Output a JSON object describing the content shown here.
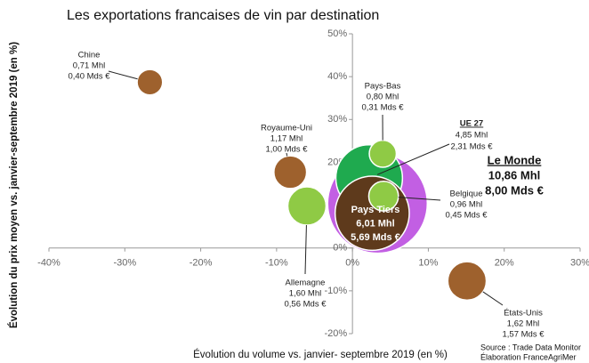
{
  "chart_data": {
    "type": "scatter",
    "title": "Les exportations francaises de vin par destination",
    "x_label": "Évolution du volume vs. janvier- septembre 2019 (en %)",
    "y_label": "Évolution du prix moyen vs. janvier-septembre 2019 (en %)",
    "source": [
      "Source : Trade Data Monitor",
      "Élaboration FranceAgriMer"
    ],
    "xlim": [
      -40,
      30
    ],
    "ylim": [
      -20,
      50
    ],
    "xticks": [
      {
        "value": -40,
        "label": "-40%"
      },
      {
        "value": -30,
        "label": "-30%"
      },
      {
        "value": -20,
        "label": "-20%"
      },
      {
        "value": -10,
        "label": "-10%"
      },
      {
        "value": 0,
        "label": "0%"
      },
      {
        "value": 10,
        "label": "10%"
      },
      {
        "value": 20,
        "label": "20%"
      },
      {
        "value": 30,
        "label": "30%"
      }
    ],
    "yticks": [
      {
        "value": -20,
        "label": "-20%"
      },
      {
        "value": -10,
        "label": "-10%"
      },
      {
        "value": 0,
        "label": "0%"
      },
      {
        "value": 10,
        "label": "10%"
      },
      {
        "value": 20,
        "label": "20%"
      },
      {
        "value": 30,
        "label": "30%"
      },
      {
        "value": 40,
        "label": "40%"
      },
      {
        "value": 50,
        "label": "50%"
      }
    ],
    "points": [
      {
        "name": "Le Monde",
        "x": 3.3,
        "y": 10.4,
        "size": 10.86,
        "size_label": "10,86 Mhl",
        "value_label": "8,00 Mds €",
        "color": "#c25fe3"
      },
      {
        "name": "UE 27",
        "x": 2.2,
        "y": 16.3,
        "size": 4.85,
        "size_label": "4,85 Mhl",
        "value_label": "2,31 Mds €",
        "color": "#1faa4f"
      },
      {
        "name": "Pays Tiers",
        "x": 2.6,
        "y": 8.1,
        "size": 6.01,
        "size_label": "6,01 Mhl",
        "value_label": "5,69 Mds €",
        "color": "#5e3a1c"
      },
      {
        "name": "Chine",
        "x": -26.7,
        "y": 38.7,
        "size": 0.71,
        "size_label": "0,71 Mhl",
        "value_label": "0,40 Mds €",
        "color": "#9e612d"
      },
      {
        "name": "Royaume-Uni",
        "x": -8.2,
        "y": 17.7,
        "size": 1.17,
        "size_label": "1,17 Mhl",
        "value_label": "1,00 Mds €",
        "color": "#9e612d"
      },
      {
        "name": "Allemagne",
        "x": -6.0,
        "y": 9.8,
        "size": 1.6,
        "size_label": "1,60 Mhl",
        "value_label": "0,56 Mds €",
        "color": "#8fca45"
      },
      {
        "name": "Pays-Bas",
        "x": 4.0,
        "y": 22.0,
        "size": 0.8,
        "size_label": "0,80 Mhl",
        "value_label": "0,31 Mds €",
        "color": "#8fca45"
      },
      {
        "name": "Belgique",
        "x": 4.1,
        "y": 12.1,
        "size": 0.96,
        "size_label": "0,96 Mhl",
        "value_label": "0,45 Mds €",
        "color": "#8fca45"
      },
      {
        "name": "États-Unis",
        "x": 15.1,
        "y": -7.7,
        "size": 1.62,
        "size_label": "1,62 Mhl",
        "value_label": "1,57 Mds €",
        "color": "#9e612d"
      }
    ]
  }
}
